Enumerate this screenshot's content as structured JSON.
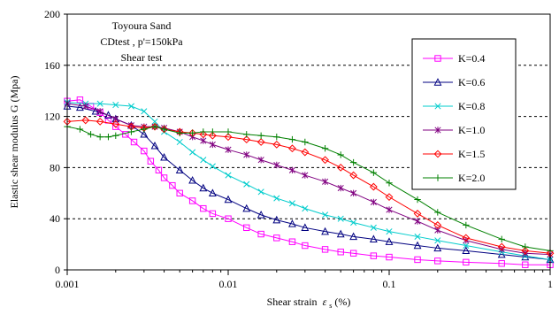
{
  "chart_data": {
    "type": "line",
    "title": "",
    "xlabel": "Shear strain",
    "xlabel_symbol": "ε",
    "xlabel_subscript": "s",
    "xlabel_unit": "(%)",
    "ylabel": "Elastic shear modulus G (Mpa)",
    "x_scale": "log",
    "xlim": [
      0.001,
      1
    ],
    "ylim": [
      0,
      200
    ],
    "x_ticks": [
      0.001,
      0.01,
      0.1,
      1
    ],
    "x_tick_labels": [
      "0.001",
      "0.01",
      "0.1",
      "1"
    ],
    "y_ticks": [
      0,
      40,
      80,
      120,
      160,
      200
    ],
    "y_tick_labels": [
      "0",
      "40",
      "80",
      "120",
      "160",
      "200"
    ],
    "grid": "horizontal-dashed",
    "legend_position": "right",
    "annotations": [
      "Toyoura Sand",
      "CDtest , p'=150kPa",
      "Shear test"
    ],
    "series": [
      {
        "name": "K=0.4",
        "color": "#ff00ff",
        "marker": "square",
        "points": [
          [
            0.001,
            132
          ],
          [
            0.0012,
            133
          ],
          [
            0.0014,
            128
          ],
          [
            0.0016,
            123
          ],
          [
            0.0018,
            117
          ],
          [
            0.002,
            112
          ],
          [
            0.0023,
            106
          ],
          [
            0.0026,
            100
          ],
          [
            0.003,
            93
          ],
          [
            0.0033,
            85
          ],
          [
            0.0037,
            78
          ],
          [
            0.004,
            72
          ],
          [
            0.0045,
            66
          ],
          [
            0.005,
            60
          ],
          [
            0.006,
            54
          ],
          [
            0.007,
            48
          ],
          [
            0.008,
            44
          ],
          [
            0.01,
            40
          ],
          [
            0.013,
            33
          ],
          [
            0.016,
            28
          ],
          [
            0.02,
            25
          ],
          [
            0.025,
            22
          ],
          [
            0.03,
            19
          ],
          [
            0.04,
            16
          ],
          [
            0.05,
            14
          ],
          [
            0.06,
            13
          ],
          [
            0.08,
            11
          ],
          [
            0.1,
            10
          ],
          [
            0.15,
            8
          ],
          [
            0.2,
            7
          ],
          [
            0.3,
            6
          ],
          [
            0.5,
            5
          ],
          [
            0.7,
            4
          ],
          [
            1,
            4
          ]
        ]
      },
      {
        "name": "K=0.6",
        "color": "#000080",
        "marker": "triangle",
        "points": [
          [
            0.001,
            128
          ],
          [
            0.0012,
            127
          ],
          [
            0.0015,
            124
          ],
          [
            0.0018,
            121
          ],
          [
            0.002,
            118
          ],
          [
            0.0025,
            113
          ],
          [
            0.003,
            106
          ],
          [
            0.0035,
            97
          ],
          [
            0.004,
            88
          ],
          [
            0.005,
            78
          ],
          [
            0.006,
            70
          ],
          [
            0.007,
            64
          ],
          [
            0.008,
            60
          ],
          [
            0.01,
            55
          ],
          [
            0.013,
            48
          ],
          [
            0.016,
            43
          ],
          [
            0.02,
            39
          ],
          [
            0.025,
            36
          ],
          [
            0.03,
            33
          ],
          [
            0.04,
            30
          ],
          [
            0.05,
            28
          ],
          [
            0.06,
            26
          ],
          [
            0.08,
            24
          ],
          [
            0.1,
            22
          ],
          [
            0.15,
            19
          ],
          [
            0.2,
            17
          ],
          [
            0.3,
            15
          ],
          [
            0.5,
            12
          ],
          [
            0.7,
            10
          ],
          [
            1,
            8
          ]
        ]
      },
      {
        "name": "K=0.8",
        "color": "#00cccc",
        "marker": "x",
        "points": [
          [
            0.001,
            131
          ],
          [
            0.0013,
            130
          ],
          [
            0.0016,
            130
          ],
          [
            0.002,
            129
          ],
          [
            0.0025,
            128
          ],
          [
            0.003,
            124
          ],
          [
            0.0035,
            116
          ],
          [
            0.004,
            108
          ],
          [
            0.005,
            100
          ],
          [
            0.006,
            92
          ],
          [
            0.007,
            86
          ],
          [
            0.008,
            81
          ],
          [
            0.01,
            74
          ],
          [
            0.013,
            67
          ],
          [
            0.016,
            61
          ],
          [
            0.02,
            56
          ],
          [
            0.025,
            52
          ],
          [
            0.03,
            48
          ],
          [
            0.04,
            43
          ],
          [
            0.05,
            40
          ],
          [
            0.06,
            37
          ],
          [
            0.08,
            33
          ],
          [
            0.1,
            30
          ],
          [
            0.15,
            26
          ],
          [
            0.2,
            23
          ],
          [
            0.3,
            19
          ],
          [
            0.5,
            14
          ],
          [
            0.7,
            11
          ],
          [
            1,
            8
          ]
        ]
      },
      {
        "name": "K=1.0",
        "color": "#800080",
        "marker": "star",
        "points": [
          [
            0.001,
            130
          ],
          [
            0.0013,
            128
          ],
          [
            0.0016,
            124
          ],
          [
            0.002,
            118
          ],
          [
            0.0025,
            113
          ],
          [
            0.003,
            112
          ],
          [
            0.0035,
            112
          ],
          [
            0.004,
            111
          ],
          [
            0.005,
            108
          ],
          [
            0.006,
            104
          ],
          [
            0.007,
            101
          ],
          [
            0.008,
            98
          ],
          [
            0.01,
            94
          ],
          [
            0.013,
            90
          ],
          [
            0.016,
            86
          ],
          [
            0.02,
            82
          ],
          [
            0.025,
            78
          ],
          [
            0.03,
            74
          ],
          [
            0.04,
            69
          ],
          [
            0.05,
            64
          ],
          [
            0.06,
            60
          ],
          [
            0.08,
            53
          ],
          [
            0.1,
            47
          ],
          [
            0.15,
            38
          ],
          [
            0.2,
            31
          ],
          [
            0.3,
            23
          ],
          [
            0.5,
            16
          ],
          [
            0.7,
            13
          ],
          [
            1,
            12
          ]
        ]
      },
      {
        "name": "K=1.5",
        "color": "#ff0000",
        "marker": "diamond",
        "points": [
          [
            0.001,
            116
          ],
          [
            0.0013,
            117
          ],
          [
            0.0016,
            116
          ],
          [
            0.002,
            114
          ],
          [
            0.0025,
            112
          ],
          [
            0.003,
            111
          ],
          [
            0.0035,
            112
          ],
          [
            0.004,
            110
          ],
          [
            0.005,
            108
          ],
          [
            0.006,
            107
          ],
          [
            0.007,
            106
          ],
          [
            0.008,
            105
          ],
          [
            0.01,
            104
          ],
          [
            0.013,
            102
          ],
          [
            0.016,
            100
          ],
          [
            0.02,
            98
          ],
          [
            0.025,
            95
          ],
          [
            0.03,
            92
          ],
          [
            0.04,
            86
          ],
          [
            0.05,
            80
          ],
          [
            0.06,
            74
          ],
          [
            0.08,
            65
          ],
          [
            0.1,
            57
          ],
          [
            0.15,
            44
          ],
          [
            0.2,
            35
          ],
          [
            0.3,
            25
          ],
          [
            0.5,
            18
          ],
          [
            0.7,
            15
          ],
          [
            1,
            13
          ]
        ]
      },
      {
        "name": "K=2.0",
        "color": "#008000",
        "marker": "plus",
        "points": [
          [
            0.001,
            112
          ],
          [
            0.0012,
            110
          ],
          [
            0.0014,
            106
          ],
          [
            0.0016,
            104
          ],
          [
            0.0018,
            104
          ],
          [
            0.002,
            105
          ],
          [
            0.0025,
            108
          ],
          [
            0.003,
            110
          ],
          [
            0.0035,
            112
          ],
          [
            0.004,
            110
          ],
          [
            0.005,
            107
          ],
          [
            0.006,
            107
          ],
          [
            0.007,
            108
          ],
          [
            0.008,
            108
          ],
          [
            0.01,
            108
          ],
          [
            0.013,
            106
          ],
          [
            0.016,
            105
          ],
          [
            0.02,
            104
          ],
          [
            0.025,
            102
          ],
          [
            0.03,
            100
          ],
          [
            0.04,
            95
          ],
          [
            0.05,
            90
          ],
          [
            0.06,
            84
          ],
          [
            0.08,
            76
          ],
          [
            0.1,
            68
          ],
          [
            0.15,
            55
          ],
          [
            0.2,
            45
          ],
          [
            0.3,
            35
          ],
          [
            0.5,
            24
          ],
          [
            0.7,
            18
          ],
          [
            1,
            15
          ]
        ]
      }
    ]
  }
}
